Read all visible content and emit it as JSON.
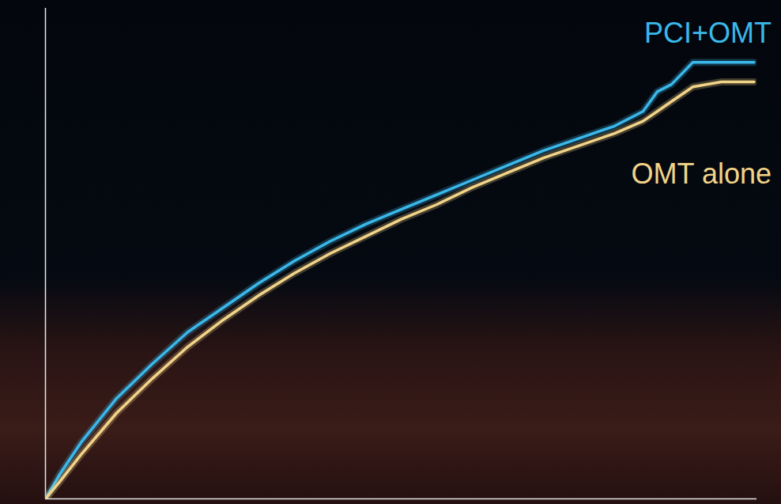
{
  "chart_data": {
    "type": "line",
    "x": [
      0,
      2,
      5,
      10,
      15,
      20,
      25,
      30,
      35,
      40,
      45,
      50,
      55,
      60,
      65,
      70,
      75,
      80,
      84,
      86,
      88,
      91,
      95,
      99.6
    ],
    "series": [
      {
        "name": "PCI+OMT",
        "color": "#3ab8ea",
        "values": [
          0,
          5,
          11.5,
          20.5,
          27.5,
          34,
          39,
          44,
          48.5,
          52.5,
          56,
          59,
          62,
          65,
          68,
          71,
          73.5,
          76,
          79,
          83,
          84.5,
          89,
          89,
          89
        ]
      },
      {
        "name": "OMT alone",
        "color": "#f2d488",
        "values": [
          0,
          3.5,
          9,
          17.5,
          24.5,
          31,
          36.5,
          41.5,
          46,
          50,
          53.5,
          57,
          60,
          63.5,
          66.5,
          69.5,
          72,
          74.5,
          77,
          79,
          81,
          84,
          85,
          85
        ]
      }
    ],
    "xlim": [
      0,
      100
    ],
    "ylim": [
      0,
      100
    ],
    "xticks": [],
    "yticks": [],
    "tick_labels": false,
    "grid": false
  }
}
